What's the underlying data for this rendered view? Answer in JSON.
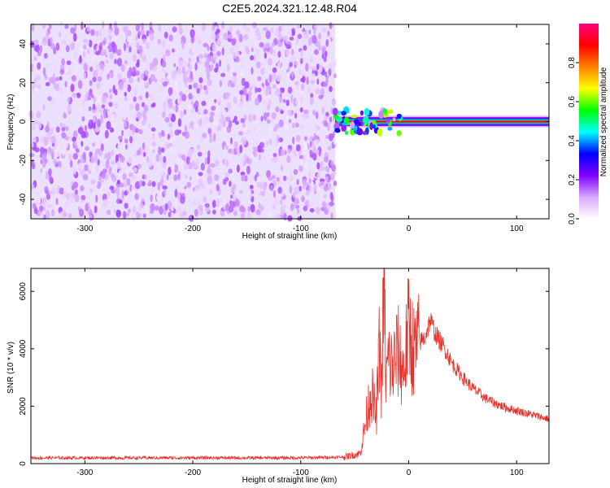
{
  "title": "C2E5.2024.321.12.48.R04",
  "chart_data": [
    {
      "type": "heatmap",
      "xlabel": "Height of straight line (km)",
      "ylabel": "Frequency (Hz)",
      "xlim": [
        -350,
        130
      ],
      "ylim": [
        -50,
        50
      ],
      "x_ticks": [
        -300,
        -200,
        -100,
        0,
        100
      ],
      "y_ticks": [
        -40,
        -20,
        0,
        20,
        40
      ],
      "colorbar": {
        "label": "Normalized spectral amplitude",
        "range": [
          0,
          1
        ],
        "ticks": [
          "0.0",
          "0.2",
          "0.4",
          "0.6",
          "0.8"
        ],
        "tick_values": [
          0,
          0.2,
          0.4,
          0.6,
          0.8
        ],
        "colors": [
          "#ffffff",
          "#d8a8ff",
          "#8000ff",
          "#0000ff",
          "#00ffff",
          "#00ff00",
          "#ffff00",
          "#ff8000",
          "#ff0000",
          "#ff0080"
        ]
      },
      "noise_region": {
        "x_range": [
          -350,
          -68
        ],
        "amplitude": 0.15
      },
      "signal_band": {
        "x_range": [
          -68,
          130
        ],
        "frequency": 0,
        "half_width_hz": 3,
        "amplitude_range": [
          0.6,
          0.9
        ]
      },
      "grid": false
    },
    {
      "type": "line",
      "xlabel": "Height of straight line (km)",
      "ylabel": "SNR (10 * v/v)",
      "xlim": [
        -350,
        130
      ],
      "ylim": [
        0,
        6800
      ],
      "x_ticks": [
        -300,
        -200,
        -100,
        0,
        100
      ],
      "y_ticks": [
        0,
        2000,
        4000,
        6000
      ],
      "color": "#e8302a",
      "grid": false,
      "series": [
        {
          "x": [
            -350,
            -300,
            -250,
            -200,
            -150,
            -100,
            -60,
            -45,
            -40,
            -35,
            -30,
            -27,
            -25,
            -23,
            -21,
            -19,
            -15,
            -10,
            -5,
            0,
            5,
            10,
            15,
            20,
            25,
            30,
            35,
            40,
            50,
            60,
            70,
            80,
            90,
            100,
            110,
            120,
            130
          ],
          "y": [
            200,
            200,
            200,
            200,
            200,
            200,
            230,
            350,
            1400,
            2600,
            1600,
            4200,
            2500,
            6500,
            2800,
            3600,
            3300,
            3900,
            3200,
            4700,
            3900,
            4200,
            4400,
            5000,
            4500,
            4200,
            3900,
            3500,
            3000,
            2600,
            2300,
            2100,
            1950,
            1850,
            1750,
            1650,
            1550
          ]
        }
      ]
    }
  ]
}
